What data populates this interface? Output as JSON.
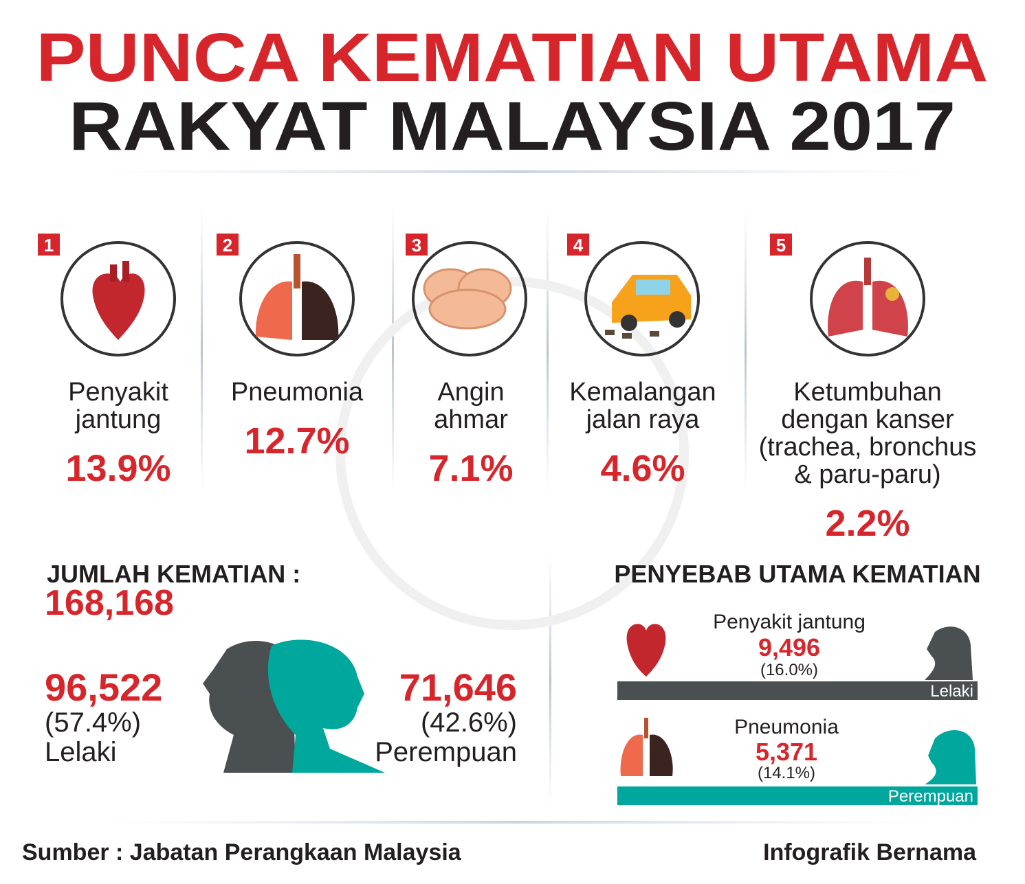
{
  "header": {
    "title_line1": "PUNCA KEMATIAN UTAMA",
    "title_line2": "RAKYAT MALAYSIA 2017"
  },
  "causes": [
    {
      "rank": "1",
      "label_lines": [
        "Penyakit",
        "jantung"
      ],
      "percent": "13.9%"
    },
    {
      "rank": "2",
      "label_lines": [
        "Pneumonia"
      ],
      "percent": "12.7%"
    },
    {
      "rank": "3",
      "label_lines": [
        "Angin",
        "ahmar"
      ],
      "percent": "7.1%"
    },
    {
      "rank": "4",
      "label_lines": [
        "Kemalangan",
        "jalan raya"
      ],
      "percent": "4.6%"
    },
    {
      "rank": "5",
      "label_lines": [
        "Ketumbuhan",
        "dengan kanser",
        "(trachea, bronchus",
        "& paru-paru)"
      ],
      "percent": "2.2%"
    }
  ],
  "total": {
    "label": "JUMLAH KEMATIAN :",
    "value": "168,168"
  },
  "male": {
    "value": "96,522",
    "share": "(57.4%)",
    "label": "Lelaki"
  },
  "female": {
    "value": "71,646",
    "share": "(42.6%)",
    "label": "Perempuan"
  },
  "leading": {
    "title": "PENYEBAB UTAMA KEMATIAN",
    "rows": [
      {
        "cause": "Penyakit jantung",
        "value": "9,496",
        "share": "(16.0%)",
        "group": "Lelaki"
      },
      {
        "cause": "Pneumonia",
        "value": "5,371",
        "share": "(14.1%)",
        "group": "Perempuan"
      }
    ]
  },
  "footer": {
    "source": "Sumber : Jabatan Perangkaan Malaysia",
    "credit": "Infografik Bernama"
  }
}
